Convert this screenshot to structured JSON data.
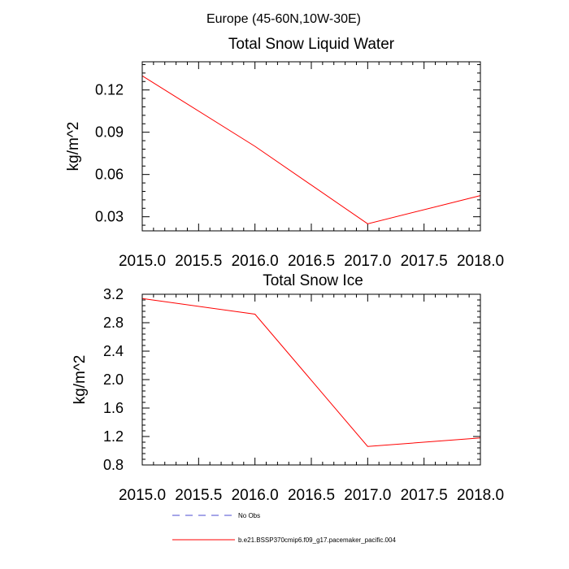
{
  "figure": {
    "supertitle": "Europe (45-60N,10W-30E)"
  },
  "colors": {
    "model": "#ff0000",
    "obs": "#4b4bd2",
    "axis": "#000000"
  },
  "legend": {
    "items": [
      {
        "label": "No Obs",
        "style": "dashed",
        "color": "#4b4bd2"
      },
      {
        "label": "b.e21.BSSP370cmip6.f09_g17.pacemaker_pacific.004",
        "style": "solid",
        "color": "#ff0000"
      }
    ]
  },
  "chart_data": [
    {
      "type": "line",
      "title": "Total Snow Liquid Water",
      "xlabel": "",
      "ylabel": "kg/m^2",
      "xlim": [
        2015.0,
        2018.0
      ],
      "ylim": [
        0.02,
        0.14
      ],
      "x_major_ticks": [
        2015.0,
        2015.5,
        2016.0,
        2016.5,
        2017.0,
        2017.5,
        2018.0
      ],
      "x_tick_labels": [
        "2015.0",
        "2015.5",
        "2016.0",
        "2016.5",
        "2017.0",
        "2017.5",
        "2018.0"
      ],
      "x_minor_step": 0.1,
      "y_major_ticks": [
        0.03,
        0.06,
        0.09,
        0.12
      ],
      "y_tick_labels": [
        "0.03",
        "0.06",
        "0.09",
        "0.12"
      ],
      "y_minor_step": 0.006,
      "grid": false,
      "series": [
        {
          "name": "b.e21.BSSP370cmip6.f09_g17.pacemaker_pacific.004",
          "color": "#ff0000",
          "x": [
            2015.0,
            2016.0,
            2017.0,
            2018.0
          ],
          "values": [
            0.13,
            0.08,
            0.025,
            0.045
          ]
        }
      ]
    },
    {
      "type": "line",
      "title": "Total Snow Ice",
      "xlabel": "",
      "ylabel": "kg/m^2",
      "xlim": [
        2015.0,
        2018.0
      ],
      "ylim": [
        0.8,
        3.2
      ],
      "x_major_ticks": [
        2015.0,
        2015.5,
        2016.0,
        2016.5,
        2017.0,
        2017.5,
        2018.0
      ],
      "x_tick_labels": [
        "2015.0",
        "2015.5",
        "2016.0",
        "2016.5",
        "2017.0",
        "2017.5",
        "2018.0"
      ],
      "x_minor_step": 0.1,
      "y_major_ticks": [
        0.8,
        1.2,
        1.6,
        2.0,
        2.4,
        2.8,
        3.2
      ],
      "y_tick_labels": [
        "0.8",
        "1.2",
        "1.6",
        "2.0",
        "2.4",
        "2.8",
        "3.2"
      ],
      "y_minor_step": 0.08,
      "grid": false,
      "series": [
        {
          "name": "b.e21.BSSP370cmip6.f09_g17.pacemaker_pacific.004",
          "color": "#ff0000",
          "x": [
            2015.0,
            2016.0,
            2017.0,
            2018.0
          ],
          "values": [
            3.14,
            2.92,
            1.06,
            1.18
          ]
        }
      ]
    }
  ]
}
